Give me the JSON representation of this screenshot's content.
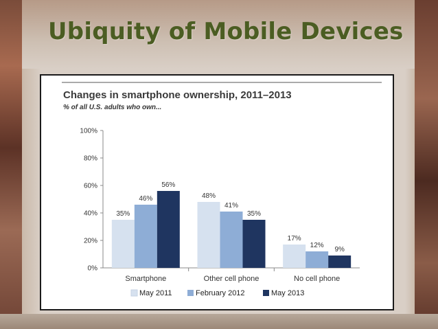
{
  "slide": {
    "title": "Ubiquity of Mobile Devices"
  },
  "chart_data": {
    "type": "bar",
    "title": "Changes in smartphone ownership, 2011–2013",
    "subtitle": "% of all U.S. adults who own...",
    "categories": [
      "Smartphone",
      "Other cell phone",
      "No cell phone"
    ],
    "series": [
      {
        "name": "May 2011",
        "values": [
          35,
          48,
          17
        ],
        "color": "#d6e1ef"
      },
      {
        "name": "February 2012",
        "values": [
          46,
          41,
          12
        ],
        "color": "#8eadd6"
      },
      {
        "name": "May 2013",
        "values": [
          56,
          35,
          9
        ],
        "color": "#1f3560"
      }
    ],
    "data_labels": [
      [
        "35%",
        "48%",
        "17%"
      ],
      [
        "46%",
        "41%",
        "12%"
      ],
      [
        "56%",
        "35%",
        "9%"
      ]
    ],
    "y_ticks": [
      "0%",
      "20%",
      "40%",
      "60%",
      "80%",
      "100%"
    ],
    "ylim": [
      0,
      100
    ],
    "legend_position": "bottom",
    "grid": false
  }
}
